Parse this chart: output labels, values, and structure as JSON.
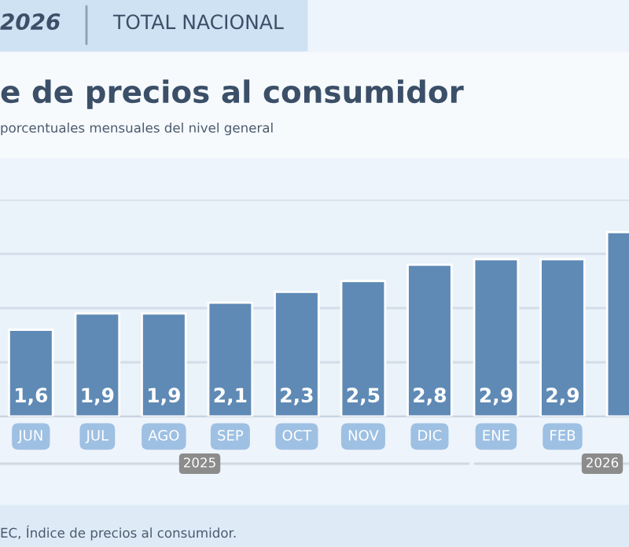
{
  "chart_data": {
    "type": "bar",
    "title": "e de precios al consumidor",
    "subtitle": "porcentuales mensuales del nivel general",
    "categories": [
      "JUN",
      "JUL",
      "AGO",
      "SEP",
      "OCT",
      "NOV",
      "DIC",
      "ENE",
      "FEB",
      null
    ],
    "values": [
      1.6,
      1.9,
      1.9,
      2.1,
      2.3,
      2.5,
      2.8,
      2.9,
      2.9,
      3.4
    ],
    "value_labels": [
      "1,6",
      "1,9",
      "1,9",
      "2,1",
      "2,3",
      "2,5",
      "2,8",
      "2,9",
      "2,9",
      null
    ],
    "color": "#5f8ab5",
    "ylim": [
      0,
      4
    ],
    "yticks": [
      {
        "value": 0,
        "label": null
      },
      {
        "value": 1,
        "label": null
      },
      {
        "value": 2,
        "label": null
      },
      {
        "value": 3,
        "label": null
      },
      {
        "value": 4,
        "label": null
      }
    ],
    "grid": "y",
    "annotations": [
      "2026",
      "TOTAL NACIONAL",
      "2025",
      "2026",
      "EC, Índice de precios al consumidor."
    ]
  }
}
